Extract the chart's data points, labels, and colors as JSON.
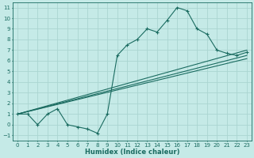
{
  "xlabel": "Humidex (Indice chaleur)",
  "bg_color": "#c5eae7",
  "grid_color": "#aad5d1",
  "line_color": "#1a6b60",
  "xlim": [
    -0.5,
    23.5
  ],
  "ylim": [
    -1.5,
    11.5
  ],
  "xticks": [
    0,
    1,
    2,
    3,
    4,
    5,
    6,
    7,
    8,
    9,
    10,
    11,
    12,
    13,
    14,
    15,
    16,
    17,
    18,
    19,
    20,
    21,
    22,
    23
  ],
  "yticks": [
    -1,
    0,
    1,
    2,
    3,
    4,
    5,
    6,
    7,
    8,
    9,
    10,
    11
  ],
  "line1_x": [
    0,
    1,
    2,
    3,
    4,
    5,
    6,
    7,
    8,
    9,
    10,
    11,
    12,
    13,
    14,
    15,
    16,
    17,
    18,
    19,
    20,
    21,
    22,
    23
  ],
  "line1_y": [
    1,
    1,
    0,
    1,
    1.5,
    0,
    -0.2,
    -0.4,
    -0.8,
    1,
    6.5,
    7.5,
    8.0,
    9.0,
    8.7,
    9.8,
    11.0,
    10.7,
    9.0,
    8.5,
    7.0,
    6.7,
    6.5,
    6.8
  ],
  "line2_x": [
    0,
    23
  ],
  "line2_y": [
    1.0,
    7.0
  ],
  "line3_x": [
    0,
    23
  ],
  "line3_y": [
    1.0,
    6.5
  ],
  "line4_x": [
    0,
    23
  ],
  "line4_y": [
    1.0,
    6.2
  ]
}
